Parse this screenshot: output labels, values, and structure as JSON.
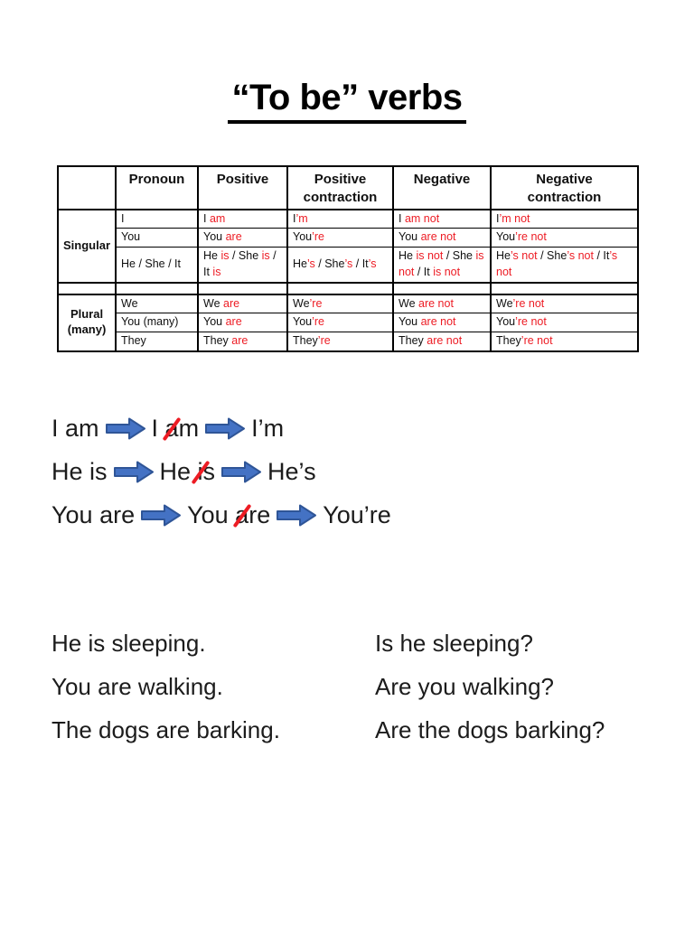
{
  "title": "“To be” verbs",
  "colors": {
    "red": "#ed1c24",
    "text": "#161616",
    "table_border": "#000000",
    "arrow_fill": "#4472c4",
    "arrow_stroke": "#2f5597"
  },
  "table": {
    "header_lines": [
      [],
      [
        "Pronoun"
      ],
      [
        "Positive"
      ],
      [
        "Positive",
        "contraction"
      ],
      [
        "Negative"
      ],
      [
        "Negative",
        "contraction"
      ]
    ],
    "column_keys": [
      "pronoun",
      "positive",
      "positive_contraction",
      "negative",
      "negative_contraction"
    ],
    "groups": [
      {
        "label": "Singular",
        "rows": [
          {
            "pronoun": [
              {
                "text": "I",
                "color": "black"
              }
            ],
            "positive": [
              {
                "text": "I ",
                "color": "black"
              },
              {
                "text": "am",
                "color": "red"
              }
            ],
            "positive_contraction": [
              {
                "text": "I",
                "color": "black"
              },
              {
                "text": "’m",
                "color": "red"
              }
            ],
            "negative": [
              {
                "text": "I ",
                "color": "black"
              },
              {
                "text": "am not",
                "color": "red"
              }
            ],
            "negative_contraction": [
              {
                "text": "I",
                "color": "black"
              },
              {
                "text": "’m not",
                "color": "red"
              }
            ]
          },
          {
            "pronoun": [
              {
                "text": "You",
                "color": "black"
              }
            ],
            "positive": [
              {
                "text": "You ",
                "color": "black"
              },
              {
                "text": "are",
                "color": "red"
              }
            ],
            "positive_contraction": [
              {
                "text": "You",
                "color": "black"
              },
              {
                "text": "’re",
                "color": "red"
              }
            ],
            "negative": [
              {
                "text": "You ",
                "color": "black"
              },
              {
                "text": "are not",
                "color": "red"
              }
            ],
            "negative_contraction": [
              {
                "text": "You",
                "color": "black"
              },
              {
                "text": "’re not",
                "color": "red"
              }
            ]
          },
          {
            "pronoun": [
              {
                "text": "He / She / It",
                "color": "black"
              }
            ],
            "positive": [
              {
                "text": "He ",
                "color": "black"
              },
              {
                "text": "is",
                "color": "red"
              },
              {
                "text": " / She ",
                "color": "black"
              },
              {
                "text": "is",
                "color": "red"
              },
              {
                "text": " / It ",
                "color": "black"
              },
              {
                "text": "is",
                "color": "red"
              }
            ],
            "positive_contraction": [
              {
                "text": "He",
                "color": "black"
              },
              {
                "text": "’s",
                "color": "red"
              },
              {
                "text": " / She",
                "color": "black"
              },
              {
                "text": "’s",
                "color": "red"
              },
              {
                "text": " / It",
                "color": "black"
              },
              {
                "text": "’s",
                "color": "red"
              }
            ],
            "negative": [
              {
                "text": "He ",
                "color": "black"
              },
              {
                "text": "is not",
                "color": "red"
              },
              {
                "text": " / She ",
                "color": "black"
              },
              {
                "text": "is not",
                "color": "red"
              },
              {
                "text": " / It ",
                "color": "black"
              },
              {
                "text": "is not",
                "color": "red"
              }
            ],
            "negative_contraction": [
              {
                "text": "He",
                "color": "black"
              },
              {
                "text": "’s not",
                "color": "red"
              },
              {
                "text": " / She",
                "color": "black"
              },
              {
                "text": "’s not",
                "color": "red"
              },
              {
                "text": " / It",
                "color": "black"
              },
              {
                "text": "’s not",
                "color": "red"
              }
            ]
          }
        ]
      },
      {
        "label": "Plural (many)",
        "rows": [
          {
            "pronoun": [
              {
                "text": "We",
                "color": "black"
              }
            ],
            "positive": [
              {
                "text": "We ",
                "color": "black"
              },
              {
                "text": "are",
                "color": "red"
              }
            ],
            "positive_contraction": [
              {
                "text": "We",
                "color": "black"
              },
              {
                "text": "’re",
                "color": "red"
              }
            ],
            "negative": [
              {
                "text": "We ",
                "color": "black"
              },
              {
                "text": "are not",
                "color": "red"
              }
            ],
            "negative_contraction": [
              {
                "text": "We",
                "color": "black"
              },
              {
                "text": "’re not",
                "color": "red"
              }
            ]
          },
          {
            "pronoun": [
              {
                "text": "You (many)",
                "color": "black"
              }
            ],
            "positive": [
              {
                "text": "You ",
                "color": "black"
              },
              {
                "text": "are",
                "color": "red"
              }
            ],
            "positive_contraction": [
              {
                "text": "You",
                "color": "black"
              },
              {
                "text": "’re",
                "color": "red"
              }
            ],
            "negative": [
              {
                "text": "You ",
                "color": "black"
              },
              {
                "text": "are not",
                "color": "red"
              }
            ],
            "negative_contraction": [
              {
                "text": "You",
                "color": "black"
              },
              {
                "text": "’re not",
                "color": "red"
              }
            ]
          },
          {
            "pronoun": [
              {
                "text": "They",
                "color": "black"
              }
            ],
            "positive": [
              {
                "text": "They ",
                "color": "black"
              },
              {
                "text": "are",
                "color": "red"
              }
            ],
            "positive_contraction": [
              {
                "text": "They",
                "color": "black"
              },
              {
                "text": "’re",
                "color": "red"
              }
            ],
            "negative": [
              {
                "text": "They ",
                "color": "black"
              },
              {
                "text": "are not",
                "color": "red"
              }
            ],
            "negative_contraction": [
              {
                "text": "They",
                "color": "black"
              },
              {
                "text": "’re not",
                "color": "red"
              }
            ]
          }
        ]
      }
    ]
  },
  "contraction_flow": [
    {
      "start": "I am",
      "mid_pre": "I ",
      "mid_cut": "a",
      "mid_post": "m",
      "result": "I’m"
    },
    {
      "start": "He is",
      "mid_pre": "He ",
      "mid_cut": "i",
      "mid_post": "s",
      "result": "He’s"
    },
    {
      "start": "You are",
      "mid_pre": "You ",
      "mid_cut": "a",
      "mid_post": "re",
      "result": "You’re"
    }
  ],
  "sentences": [
    {
      "statement": "He is sleeping.",
      "question": "Is he sleeping?"
    },
    {
      "statement": "You are walking.",
      "question": "Are you walking?"
    },
    {
      "statement": "The dogs are barking.",
      "question": "Are the dogs barking?"
    }
  ]
}
